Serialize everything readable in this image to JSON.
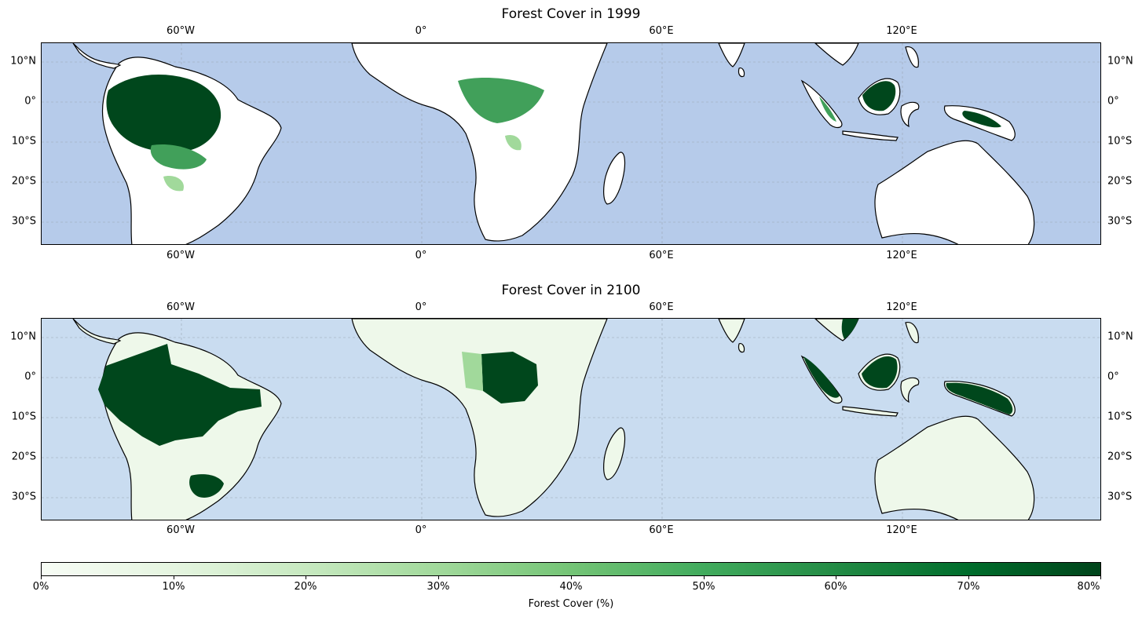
{
  "maps": [
    {
      "title": "Forest Cover in 1999",
      "ocean_color": "#b6cbea",
      "lon_ticks": [
        "60°W",
        "0°",
        "60°E",
        "120°E"
      ],
      "lat_ticks": [
        "10°N",
        "0°",
        "10°S",
        "20°S",
        "30°S"
      ]
    },
    {
      "title": "Forest Cover in 2100",
      "ocean_color": "#c9dcf0",
      "lon_ticks": [
        "60°W",
        "0°",
        "60°E",
        "120°E"
      ],
      "lat_ticks": [
        "10°N",
        "0°",
        "10°S",
        "20°S",
        "30°S"
      ]
    }
  ],
  "colorbar": {
    "label": "Forest Cover (%)",
    "ticks": [
      "0%",
      "10%",
      "20%",
      "30%",
      "40%",
      "50%",
      "60%",
      "70%",
      "80%"
    ],
    "colors": [
      "#f7fcf5",
      "#e5f5e0",
      "#c7e9c0",
      "#a1d99b",
      "#74c476",
      "#41ab5d",
      "#238b45",
      "#006d2c",
      "#00441b"
    ]
  },
  "palette": {
    "land": "#ffffff",
    "low": "#a1d99b",
    "mid": "#41a05a",
    "high": "#00471c",
    "pale": "#eef8ea"
  }
}
